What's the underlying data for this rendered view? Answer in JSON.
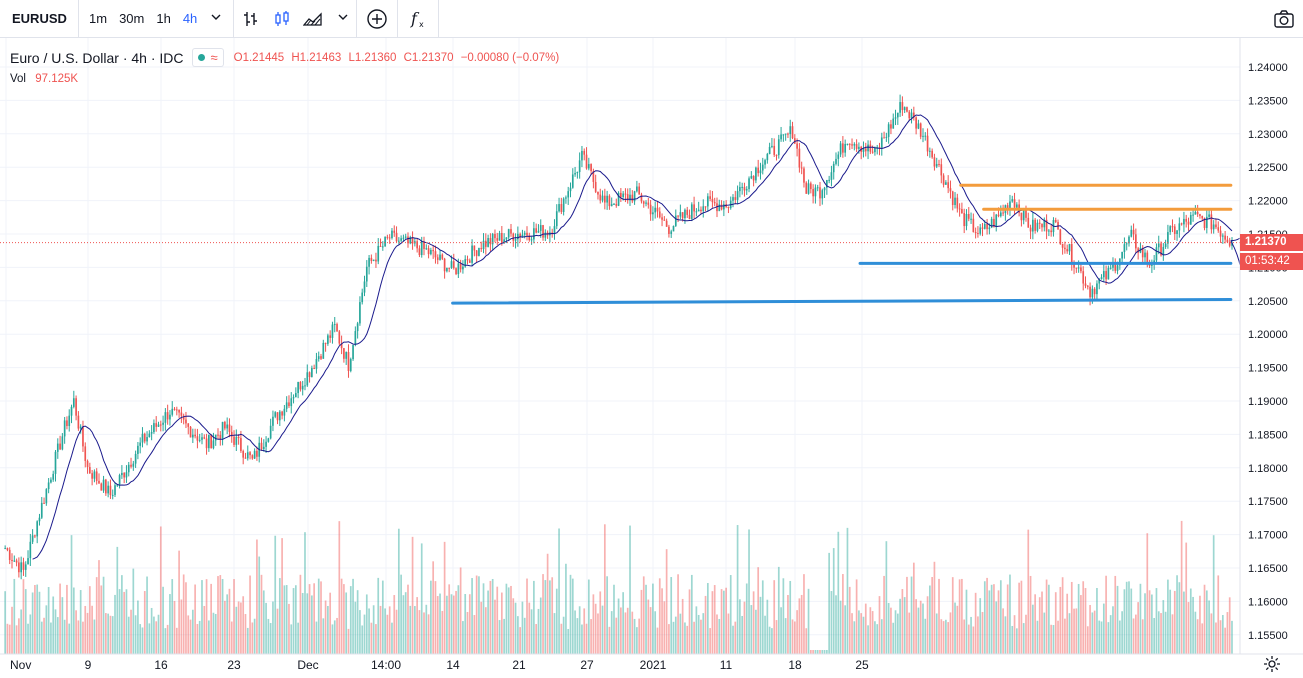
{
  "toolbar": {
    "symbol": "EURUSD",
    "intervals": [
      "1m",
      "30m",
      "1h",
      "4h"
    ],
    "active_interval": "4h",
    "icons": [
      "chevron-down-icon",
      "bar-chart-icon",
      "candles-icon",
      "area-chart-icon",
      "chevron-down-icon",
      "add-indicator-icon",
      "function-icon",
      "camera-icon"
    ]
  },
  "legend": {
    "title": "Euro / U.S. Dollar · 4h · IDC",
    "open": "O1.21445",
    "high": "H1.21463",
    "low": "L1.21360",
    "close": "C1.21370",
    "change": "−0.00080 (−0.07%)",
    "vol_label": "Vol",
    "vol_value": "97.125K"
  },
  "price_tags": {
    "last_price": "1.21370",
    "countdown": "01:53:42"
  },
  "colors": {
    "up": "#26a69a",
    "down": "#ef5350",
    "resistance": "#f39c3c",
    "support": "#2f8ed8",
    "ma": "#1a1a8c"
  },
  "chart_data": {
    "type": "candlestick",
    "symbol": "EURUSD",
    "timeframe": "4h",
    "y_axis_ticks": [
      "1.24000",
      "1.23500",
      "1.23000",
      "1.22500",
      "1.22000",
      "1.21500",
      "1.21000",
      "1.20500",
      "1.20000",
      "1.19500",
      "1.19000",
      "1.18500",
      "1.18000",
      "1.17500",
      "1.17000",
      "1.16500",
      "1.16000",
      "1.15500"
    ],
    "x_axis_ticks": [
      "Nov",
      "9",
      "16",
      "23",
      "Dec",
      "14:00",
      "14",
      "21",
      "27",
      "2021",
      "11",
      "18",
      "25"
    ],
    "ylim": [
      1.1525,
      1.2425
    ],
    "series": [
      {
        "name": "price",
        "anchors": [
          [
            0,
            1.168
          ],
          [
            8,
            1.1645
          ],
          [
            14,
            1.172
          ],
          [
            26,
            1.186
          ],
          [
            30,
            1.19
          ],
          [
            36,
            1.18
          ],
          [
            46,
            1.176
          ],
          [
            60,
            1.184
          ],
          [
            72,
            1.1885
          ],
          [
            88,
            1.1835
          ],
          [
            96,
            1.186
          ],
          [
            108,
            1.181
          ],
          [
            118,
            1.1875
          ],
          [
            132,
            1.194
          ],
          [
            144,
            1.201
          ],
          [
            150,
            1.1955
          ],
          [
            158,
            1.21
          ],
          [
            168,
            1.2145
          ],
          [
            184,
            1.2125
          ],
          [
            196,
            1.2095
          ],
          [
            208,
            1.2135
          ],
          [
            222,
            1.215
          ],
          [
            238,
            1.2155
          ],
          [
            252,
            1.2265
          ],
          [
            262,
            1.2195
          ],
          [
            276,
            1.221
          ],
          [
            290,
            1.216
          ],
          [
            304,
            1.2195
          ],
          [
            316,
            1.2195
          ],
          [
            330,
            1.2255
          ],
          [
            344,
            1.2305
          ],
          [
            350,
            1.2215
          ],
          [
            356,
            1.2215
          ],
          [
            368,
            1.2295
          ],
          [
            380,
            1.227
          ],
          [
            392,
            1.2345
          ],
          [
            400,
            1.2305
          ],
          [
            410,
            1.2235
          ],
          [
            418,
            1.2175
          ],
          [
            426,
            1.215
          ],
          [
            434,
            1.2175
          ],
          [
            440,
            1.2205
          ],
          [
            448,
            1.216
          ],
          [
            458,
            1.2165
          ],
          [
            468,
            1.2105
          ],
          [
            474,
            1.2065
          ],
          [
            482,
            1.209
          ],
          [
            492,
            1.2145
          ],
          [
            500,
            1.2105
          ],
          [
            510,
            1.2155
          ],
          [
            520,
            1.2175
          ],
          [
            528,
            1.2165
          ],
          [
            536,
            1.2137
          ]
        ]
      },
      {
        "name": "volume",
        "range": [
          0,
          100
        ]
      }
    ],
    "horizontal_lines": [
      {
        "color": "orange",
        "price": 1.2223,
        "from_bar": 418,
        "to_bar": 536
      },
      {
        "color": "orange",
        "price": 1.2187,
        "from_bar": 428,
        "to_bar": 536
      },
      {
        "color": "blue",
        "price": 1.2106,
        "from_bar": 374,
        "to_bar": 536
      },
      {
        "color": "blue",
        "price": 1.20465,
        "to_price": 1.2052,
        "from_bar": 196,
        "to_bar": 536
      }
    ],
    "last_price": 1.2137
  }
}
